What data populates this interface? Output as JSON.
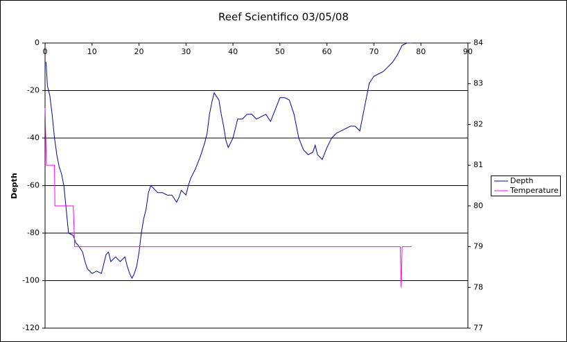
{
  "chart_data": {
    "type": "line",
    "title": "Reef Scientifico 03/05/08",
    "y_label": "Depth",
    "xlim": [
      0,
      90
    ],
    "xticks": [
      0,
      10,
      20,
      30,
      40,
      50,
      60,
      70,
      80,
      90
    ],
    "ylim": [
      -120,
      0
    ],
    "yticks": [
      0,
      -20,
      -40,
      -60,
      -80,
      -100,
      -120
    ],
    "y2lim": [
      77,
      84
    ],
    "y2ticks": [
      77,
      78,
      79,
      80,
      81,
      82,
      83,
      84
    ],
    "grid": true,
    "legend": "right",
    "series": [
      {
        "name": "Depth",
        "color": "#0000aa",
        "x": [
          0.2,
          0.5,
          1,
          1.5,
          2,
          2.5,
          3,
          3.5,
          4,
          4.5,
          5,
          6,
          6.5,
          7,
          8,
          8.5,
          9,
          10,
          11,
          12,
          12.5,
          13,
          13.5,
          14,
          15,
          16,
          17,
          17.5,
          18,
          18.5,
          19,
          19.5,
          20,
          20.5,
          21,
          21.5,
          22,
          22.5,
          23,
          24,
          25,
          26,
          27,
          28,
          28.5,
          29,
          30,
          30.5,
          31,
          32,
          33,
          34,
          34.5,
          35,
          35.5,
          36,
          37,
          37.5,
          38,
          38.5,
          39,
          40,
          41,
          42,
          43,
          44,
          45,
          46,
          47,
          48,
          49,
          50,
          51,
          52,
          53,
          54,
          55,
          56,
          57,
          57.5,
          58,
          59,
          60,
          61,
          62,
          63,
          64,
          65,
          66,
          67,
          67.5,
          68,
          69,
          70,
          71,
          72,
          73,
          74,
          75,
          76,
          77,
          78
        ],
        "values": [
          -8,
          -18,
          -22,
          -30,
          -40,
          -47,
          -52,
          -55,
          -60,
          -70,
          -80,
          -81,
          -84,
          -85,
          -88,
          -92,
          -95,
          -97,
          -96,
          -97,
          -93,
          -89,
          -88,
          -92,
          -90,
          -92,
          -90,
          -94,
          -97,
          -99,
          -97,
          -94,
          -88,
          -80,
          -74,
          -70,
          -63,
          -60,
          -61,
          -63,
          -63,
          -64,
          -64,
          -67,
          -65,
          -62,
          -64,
          -60,
          -57,
          -53,
          -48,
          -42,
          -38,
          -30,
          -25,
          -21,
          -24,
          -30,
          -35,
          -41,
          -44,
          -40,
          -32,
          -32,
          -30,
          -30,
          -32,
          -31,
          -30,
          -33,
          -28,
          -23,
          -23,
          -24,
          -30,
          -40,
          -45,
          -47,
          -46,
          -43,
          -47,
          -49,
          -44,
          -40,
          -38,
          -37,
          -36,
          -35,
          -35,
          -37,
          -32,
          -27,
          -17,
          -14,
          -13,
          -12,
          -10,
          -8,
          -5,
          -1,
          0,
          0
        ]
      },
      {
        "name": "Temperature",
        "color": "#ff00ff",
        "axis": "y2",
        "x": [
          0,
          0.3,
          0.4,
          2,
          2.1,
          6,
          6.3,
          75.6,
          75.8,
          76,
          78
        ],
        "values": [
          82.4,
          81,
          81,
          81,
          80,
          80,
          79,
          79,
          78,
          79,
          79
        ]
      }
    ]
  }
}
